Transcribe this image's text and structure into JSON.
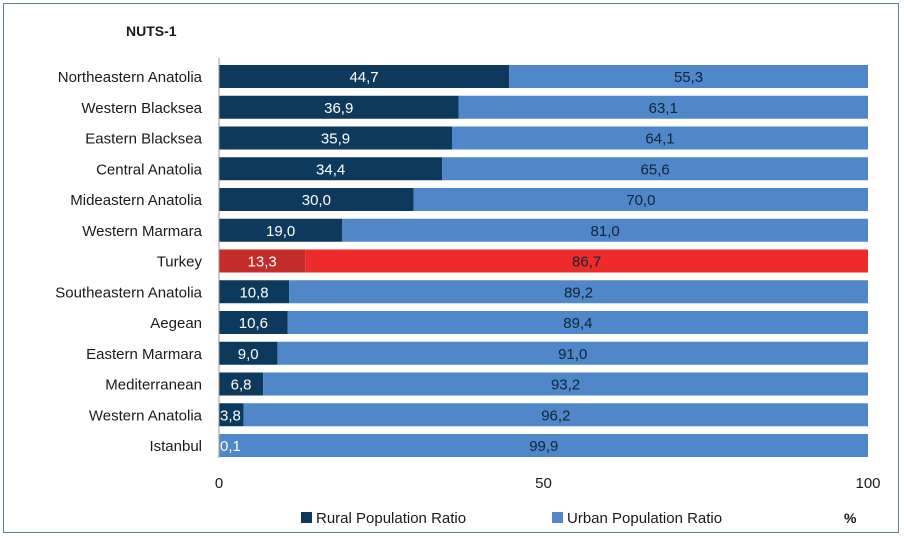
{
  "chart_data": {
    "type": "bar",
    "orientation": "horizontal",
    "stacked": true,
    "title": "NUTS-1",
    "unit_label": "%",
    "categories": [
      "Northeastern Anatolia",
      "Western Blacksea",
      "Eastern Blacksea",
      "Central Anatolia",
      "Mideastern Anatolia",
      "Western Marmara",
      "Turkey",
      "Southeastern Anatolia",
      "Aegean",
      "Eastern Marmara",
      "Mediterranean",
      "Western Anatolia",
      "Istanbul"
    ],
    "series": [
      {
        "name": "Rural Population Ratio",
        "color": "#0d3a5c",
        "values": [
          44.7,
          36.9,
          35.9,
          34.4,
          30.0,
          19.0,
          13.3,
          10.8,
          10.6,
          9.0,
          6.8,
          3.8,
          0.1
        ],
        "labels": [
          "44,7",
          "36,9",
          "35,9",
          "34,4",
          "30,0",
          "19,0",
          "13,3",
          "10,8",
          "10,6",
          "9,0",
          "6,8",
          "3,8",
          "0,1"
        ]
      },
      {
        "name": "Urban Population Ratio",
        "color": "#4f87c8",
        "values": [
          55.3,
          63.1,
          64.1,
          65.6,
          70.0,
          81.0,
          86.7,
          89.2,
          89.4,
          91.0,
          93.2,
          96.2,
          99.9
        ],
        "labels": [
          "55,3",
          "63,1",
          "64,1",
          "65,6",
          "70,0",
          "81,0",
          "86,7",
          "89,2",
          "89,4",
          "91,0",
          "93,2",
          "96,2",
          "99,9"
        ]
      }
    ],
    "highlight": {
      "category": "Turkey",
      "colors": [
        "#c42b2b",
        "#ee2b2b"
      ]
    },
    "xlim": [
      0,
      100
    ],
    "xticks": [
      {
        "value": 0,
        "label": "0"
      },
      {
        "value": 50,
        "label": "50"
      },
      {
        "value": 100,
        "label": "100"
      }
    ],
    "legend": {
      "position": "bottom",
      "items": [
        "Rural Population Ratio",
        "Urban Population Ratio"
      ]
    },
    "grid": false
  }
}
